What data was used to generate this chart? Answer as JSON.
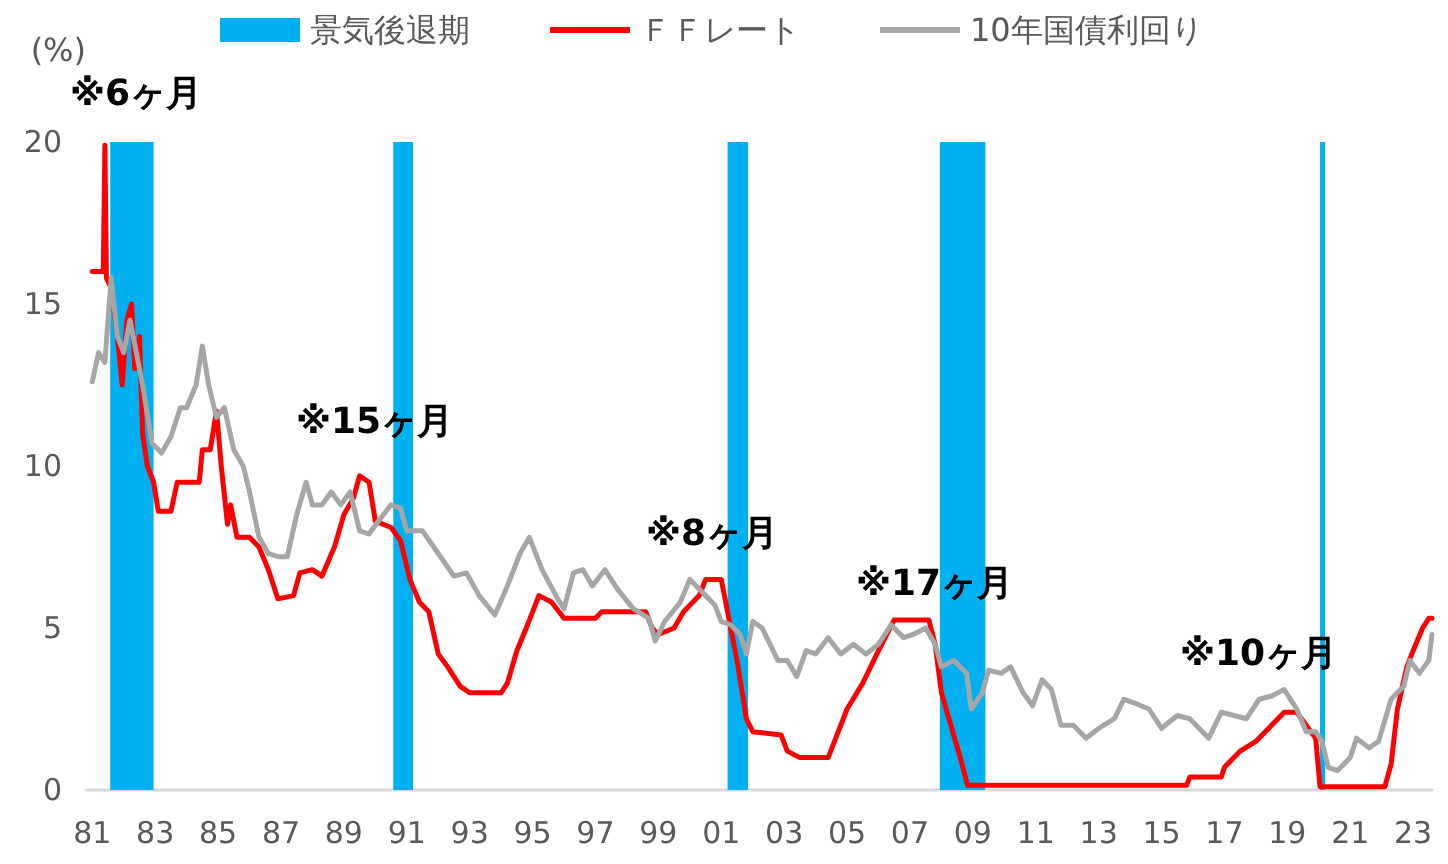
{
  "chart_data": {
    "type": "line",
    "ylabel": "(%)",
    "xlim": [
      1980.8,
      2023.6
    ],
    "xticks": [
      {
        "value": 1981,
        "label": "81"
      },
      {
        "value": 1983,
        "label": "83"
      },
      {
        "value": 1985,
        "label": "85"
      },
      {
        "value": 1987,
        "label": "87"
      },
      {
        "value": 1989,
        "label": "89"
      },
      {
        "value": 1991,
        "label": "91"
      },
      {
        "value": 1993,
        "label": "93"
      },
      {
        "value": 1995,
        "label": "95"
      },
      {
        "value": 1997,
        "label": "97"
      },
      {
        "value": 1999,
        "label": "99"
      },
      {
        "value": 2001,
        "label": "01"
      },
      {
        "value": 2003,
        "label": "03"
      },
      {
        "value": 2005,
        "label": "05"
      },
      {
        "value": 2007,
        "label": "07"
      },
      {
        "value": 2009,
        "label": "09"
      },
      {
        "value": 2011,
        "label": "11"
      },
      {
        "value": 2013,
        "label": "13"
      },
      {
        "value": 2015,
        "label": "15"
      },
      {
        "value": 2017,
        "label": "17"
      },
      {
        "value": 2019,
        "label": "19"
      },
      {
        "value": 2021,
        "label": "21"
      },
      {
        "value": 2023,
        "label": "23"
      }
    ],
    "ylim": [
      0,
      20
    ],
    "yticks": [
      0,
      5,
      10,
      15,
      20
    ],
    "grid": false,
    "legend": "top",
    "marker": "none",
    "line_style": "solid",
    "bands": [
      {
        "axis": "x",
        "from": 1981.57,
        "to": 1982.95,
        "label": "景気後退期",
        "color": "#00b0f0"
      },
      {
        "axis": "x",
        "from": 1990.57,
        "to": 1991.2,
        "color": "#00b0f0"
      },
      {
        "axis": "x",
        "from": 2001.2,
        "to": 2001.85,
        "color": "#00b0f0"
      },
      {
        "axis": "x",
        "from": 2007.95,
        "to": 2009.4,
        "color": "#00b0f0"
      },
      {
        "axis": "x",
        "from": 2020.04,
        "to": 2020.2,
        "color": "#00b0f0"
      }
    ],
    "series": [
      {
        "name": "ＦＦレート",
        "color": "#ff0000",
        "x": [
          1981.0,
          1981.35,
          1981.4,
          1981.45,
          1981.6,
          1981.8,
          1981.95,
          1982.1,
          1982.25,
          1982.35,
          1982.5,
          1982.6,
          1982.75,
          1982.95,
          1983.1,
          1983.5,
          1983.7,
          1984.1,
          1984.4,
          1984.5,
          1984.75,
          1984.95,
          1985.1,
          1985.3,
          1985.4,
          1985.6,
          1986.0,
          1986.3,
          1986.6,
          1986.9,
          1987.4,
          1987.6,
          1988.0,
          1988.3,
          1988.7,
          1989.0,
          1989.3,
          1989.5,
          1989.8,
          1990.0,
          1990.5,
          1990.8,
          1991.1,
          1991.4,
          1991.7,
          1992.0,
          1992.3,
          1992.7,
          1993.0,
          1994.0,
          1994.2,
          1994.5,
          1994.8,
          1995.0,
          1995.2,
          1995.6,
          1996.0,
          1997.0,
          1997.2,
          1998.6,
          1998.8,
          1999.0,
          1999.5,
          1999.8,
          2000.3,
          2000.5,
          2001.0,
          2001.1,
          2001.5,
          2001.8,
          2002.0,
          2002.9,
          2003.1,
          2003.5,
          2004.4,
          2004.6,
          2005.0,
          2005.5,
          2006.0,
          2006.5,
          2007.6,
          2007.8,
          2008.0,
          2008.3,
          2008.6,
          2008.83,
          2015.8,
          2015.9,
          2016.9,
          2017.0,
          2017.3,
          2017.5,
          2018.0,
          2018.5,
          2018.9,
          2019.3,
          2019.6,
          2019.9,
          2020.04,
          2022.1,
          2022.3,
          2022.5,
          2022.8,
          2023.0,
          2023.3,
          2023.5,
          2023.6
        ],
        "values": [
          16,
          16,
          19.9,
          15.8,
          15.5,
          14,
          12.5,
          14.5,
          15,
          13,
          14,
          11,
          10,
          9.5,
          8.6,
          8.6,
          9.5,
          9.5,
          9.5,
          10.5,
          10.5,
          11.7,
          10,
          8.2,
          8.8,
          7.8,
          7.8,
          7.5,
          6.8,
          5.9,
          6,
          6.7,
          6.8,
          6.6,
          7.5,
          8.5,
          9,
          9.7,
          9.5,
          8.3,
          8.1,
          7.7,
          6.5,
          5.8,
          5.5,
          4.2,
          3.8,
          3.2,
          3,
          3,
          3.3,
          4.3,
          5,
          5.5,
          6,
          5.8,
          5.3,
          5.3,
          5.5,
          5.5,
          5,
          4.8,
          5,
          5.5,
          6,
          6.5,
          6.5,
          6,
          4,
          2.2,
          1.8,
          1.7,
          1.2,
          1,
          1,
          1.5,
          2.5,
          3.3,
          4.3,
          5.25,
          5.25,
          4.5,
          3,
          2,
          1,
          0.15,
          0.15,
          0.4,
          0.4,
          0.7,
          1,
          1.2,
          1.5,
          2,
          2.4,
          2.4,
          2,
          1.6,
          0.1,
          0.1,
          0.8,
          2.5,
          3.8,
          4.3,
          5,
          5.3,
          5.3
        ]
      },
      {
        "name": "10年国債利回り",
        "color": "#a6a6a6",
        "x": [
          1981.0,
          1981.2,
          1981.4,
          1981.6,
          1981.8,
          1982.0,
          1982.2,
          1982.4,
          1982.6,
          1982.9,
          1983.2,
          1983.5,
          1983.8,
          1984.0,
          1984.3,
          1984.5,
          1984.7,
          1984.95,
          1985.2,
          1985.5,
          1985.8,
          1986.0,
          1986.3,
          1986.6,
          1986.9,
          1987.2,
          1987.5,
          1987.8,
          1988.0,
          1988.3,
          1988.6,
          1988.9,
          1989.2,
          1989.5,
          1989.8,
          1990.1,
          1990.5,
          1990.8,
          1991.0,
          1991.5,
          1992.0,
          1992.5,
          1992.9,
          1993.3,
          1993.8,
          1994.2,
          1994.6,
          1994.9,
          1995.3,
          1995.8,
          1996.0,
          1996.3,
          1996.6,
          1996.9,
          1997.3,
          1997.7,
          1998.2,
          1998.7,
          1998.9,
          1999.2,
          1999.7,
          2000.0,
          2000.4,
          2000.8,
          2001.0,
          2001.3,
          2001.6,
          2001.8,
          2002.0,
          2002.3,
          2002.8,
          2003.1,
          2003.4,
          2003.7,
          2004.0,
          2004.4,
          2004.8,
          2005.2,
          2005.6,
          2006.0,
          2006.4,
          2006.8,
          2007.1,
          2007.5,
          2007.8,
          2008.0,
          2008.4,
          2008.8,
          2008.95,
          2009.3,
          2009.5,
          2009.9,
          2010.2,
          2010.6,
          2010.9,
          2011.2,
          2011.5,
          2011.8,
          2012.2,
          2012.6,
          2013.0,
          2013.5,
          2013.8,
          2014.1,
          2014.6,
          2015.0,
          2015.5,
          2015.9,
          2016.5,
          2016.9,
          2017.3,
          2017.7,
          2018.1,
          2018.5,
          2018.9,
          2019.3,
          2019.6,
          2019.9,
          2020.1,
          2020.3,
          2020.6,
          2021.0,
          2021.2,
          2021.6,
          2021.9,
          2022.3,
          2022.7,
          2022.9,
          2023.2,
          2023.5,
          2023.6
        ],
        "values": [
          12.6,
          13.5,
          13.2,
          15.8,
          14,
          13.5,
          14.5,
          13.5,
          12.5,
          10.7,
          10.4,
          10.9,
          11.8,
          11.8,
          12.5,
          13.7,
          12.5,
          11.5,
          11.8,
          10.5,
          10,
          9.2,
          7.8,
          7.3,
          7.2,
          7.2,
          8.5,
          9.5,
          8.8,
          8.8,
          9.2,
          8.8,
          9.2,
          8,
          7.9,
          8.3,
          8.8,
          8.7,
          8,
          8,
          7.3,
          6.6,
          6.7,
          6,
          5.4,
          6.3,
          7.3,
          7.8,
          6.8,
          5.9,
          5.6,
          6.7,
          6.8,
          6.3,
          6.8,
          6.2,
          5.6,
          5.3,
          4.6,
          5.2,
          5.8,
          6.5,
          6.1,
          5.7,
          5.2,
          5.1,
          4.8,
          4.2,
          5.2,
          5,
          4,
          4,
          3.5,
          4.3,
          4.2,
          4.7,
          4.2,
          4.5,
          4.2,
          4.5,
          5.1,
          4.7,
          4.8,
          5,
          4.5,
          3.8,
          4,
          3.6,
          2.5,
          3,
          3.7,
          3.6,
          3.8,
          3,
          2.6,
          3.4,
          3.1,
          2,
          2,
          1.6,
          1.9,
          2.2,
          2.8,
          2.7,
          2.5,
          1.9,
          2.3,
          2.2,
          1.6,
          2.4,
          2.3,
          2.2,
          2.8,
          2.9,
          3.1,
          2.5,
          1.8,
          1.8,
          1.5,
          0.7,
          0.6,
          1,
          1.6,
          1.3,
          1.5,
          2.8,
          3.2,
          4,
          3.6,
          4,
          4.8
        ]
      }
    ],
    "annotations": [
      "※6ヶ月",
      "※15ヶ月",
      "※8ヶ月",
      "※17ヶ月",
      "※10ヶ月"
    ]
  }
}
